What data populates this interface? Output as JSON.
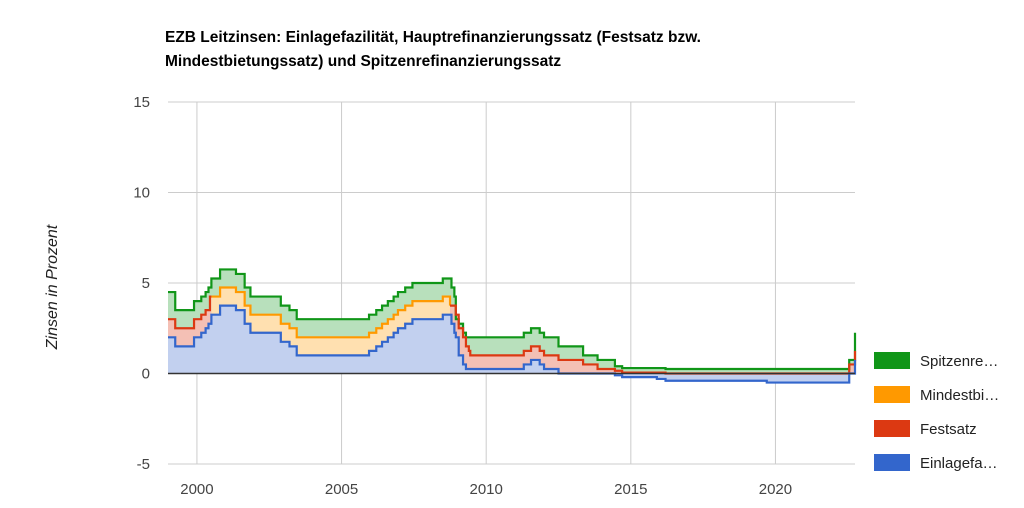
{
  "chart_data": {
    "type": "area",
    "title_lines": [
      "EZB Leitzinsen: Einlagefazilität, Hauptrefinanzierungssatz (Festsatz bzw.",
      "Mindestbietungssatz) und Spitzenrefinanzierungssatz"
    ],
    "xlabel": "",
    "ylabel": "Zinsen in Prozent",
    "xlim": [
      1999.0,
      2022.75
    ],
    "ylim": [
      -5,
      15
    ],
    "x_ticks": [
      2000,
      2005,
      2010,
      2015,
      2020
    ],
    "y_ticks": [
      -5,
      0,
      5,
      10,
      15
    ],
    "grid": true,
    "stacked": true,
    "legend_position": "right",
    "series": [
      {
        "name": "Einlagefa…",
        "color": "#3366cc",
        "fill": "#c2d0ef",
        "points": [
          [
            1999.0,
            2.0
          ],
          [
            1999.25,
            1.5
          ],
          [
            1999.9,
            2.0
          ],
          [
            2000.15,
            2.25
          ],
          [
            2000.3,
            2.5
          ],
          [
            2000.4,
            2.75
          ],
          [
            2000.5,
            3.25
          ],
          [
            2000.8,
            3.75
          ],
          [
            2001.35,
            3.5
          ],
          [
            2001.65,
            2.75
          ],
          [
            2001.85,
            2.25
          ],
          [
            2002.9,
            1.75
          ],
          [
            2003.2,
            1.5
          ],
          [
            2003.45,
            1.0
          ],
          [
            2005.95,
            1.25
          ],
          [
            2006.2,
            1.5
          ],
          [
            2006.4,
            1.75
          ],
          [
            2006.6,
            2.0
          ],
          [
            2006.8,
            2.25
          ],
          [
            2006.95,
            2.5
          ],
          [
            2007.2,
            2.75
          ],
          [
            2007.45,
            3.0
          ],
          [
            2008.5,
            3.25
          ],
          [
            2008.8,
            2.75
          ],
          [
            2008.9,
            2.25
          ],
          [
            2008.95,
            2.0
          ],
          [
            2009.05,
            1.0
          ],
          [
            2009.2,
            0.5
          ],
          [
            2009.3,
            0.25
          ],
          [
            2011.3,
            0.5
          ],
          [
            2011.55,
            0.75
          ],
          [
            2011.85,
            0.5
          ],
          [
            2012.0,
            0.25
          ],
          [
            2012.5,
            0.0
          ],
          [
            2014.45,
            -0.1
          ],
          [
            2014.7,
            -0.2
          ],
          [
            2015.9,
            -0.3
          ],
          [
            2016.2,
            -0.4
          ],
          [
            2019.7,
            -0.5
          ],
          [
            2022.55,
            0.0
          ],
          [
            2022.75,
            0.75
          ]
        ]
      },
      {
        "name": "Festsatz",
        "color": "#dc3912",
        "fill": "#f4c0b5",
        "points": [
          [
            1999.0,
            3.0
          ],
          [
            1999.25,
            2.5
          ],
          [
            1999.9,
            3.0
          ],
          [
            2000.15,
            3.25
          ],
          [
            2000.3,
            3.5
          ],
          [
            2000.45,
            4.25
          ],
          [
            2000.5,
            4.25
          ]
        ],
        "points_late": [
          [
            2008.75,
            3.75
          ],
          [
            2008.95,
            3.25
          ],
          [
            2009.05,
            2.5
          ],
          [
            2009.2,
            2.0
          ],
          [
            2009.3,
            1.5
          ],
          [
            2009.4,
            1.25
          ],
          [
            2009.45,
            1.0
          ],
          [
            2011.3,
            1.25
          ],
          [
            2011.55,
            1.5
          ],
          [
            2011.85,
            1.25
          ],
          [
            2012.0,
            1.0
          ],
          [
            2012.5,
            0.75
          ],
          [
            2013.35,
            0.5
          ],
          [
            2013.85,
            0.25
          ],
          [
            2014.45,
            0.15
          ],
          [
            2014.7,
            0.05
          ],
          [
            2016.2,
            0.0
          ],
          [
            2022.55,
            0.5
          ],
          [
            2022.75,
            1.25
          ]
        ]
      },
      {
        "name": "Mindestbi…",
        "color": "#ff9900",
        "fill": "#ffe0b0",
        "points": [
          [
            2000.5,
            4.25
          ],
          [
            2000.8,
            4.75
          ],
          [
            2001.35,
            4.5
          ],
          [
            2001.65,
            3.75
          ],
          [
            2001.85,
            3.25
          ],
          [
            2002.9,
            2.75
          ],
          [
            2003.2,
            2.5
          ],
          [
            2003.45,
            2.0
          ],
          [
            2005.95,
            2.25
          ],
          [
            2006.2,
            2.5
          ],
          [
            2006.4,
            2.75
          ],
          [
            2006.6,
            3.0
          ],
          [
            2006.8,
            3.25
          ],
          [
            2006.95,
            3.5
          ],
          [
            2007.2,
            3.75
          ],
          [
            2007.45,
            4.0
          ],
          [
            2008.5,
            4.25
          ],
          [
            2008.75,
            3.75
          ]
        ]
      },
      {
        "name": "Spitzenre…",
        "color": "#109618",
        "fill": "#b8e0bc",
        "points": [
          [
            1999.0,
            4.5
          ],
          [
            1999.25,
            3.5
          ],
          [
            1999.9,
            4.0
          ],
          [
            2000.15,
            4.25
          ],
          [
            2000.3,
            4.5
          ],
          [
            2000.4,
            4.75
          ],
          [
            2000.5,
            5.25
          ],
          [
            2000.8,
            5.75
          ],
          [
            2001.35,
            5.5
          ],
          [
            2001.65,
            4.75
          ],
          [
            2001.85,
            4.25
          ],
          [
            2002.9,
            3.75
          ],
          [
            2003.2,
            3.5
          ],
          [
            2003.45,
            3.0
          ],
          [
            2005.95,
            3.25
          ],
          [
            2006.2,
            3.5
          ],
          [
            2006.4,
            3.75
          ],
          [
            2006.6,
            4.0
          ],
          [
            2006.8,
            4.25
          ],
          [
            2006.95,
            4.5
          ],
          [
            2007.2,
            4.75
          ],
          [
            2007.45,
            5.0
          ],
          [
            2008.5,
            5.25
          ],
          [
            2008.8,
            4.75
          ],
          [
            2008.9,
            4.25
          ],
          [
            2008.95,
            3.0
          ],
          [
            2009.05,
            2.75
          ],
          [
            2009.2,
            2.25
          ],
          [
            2009.3,
            2.0
          ],
          [
            2011.3,
            2.25
          ],
          [
            2011.55,
            2.5
          ],
          [
            2011.85,
            2.25
          ],
          [
            2012.0,
            2.0
          ],
          [
            2012.5,
            1.5
          ],
          [
            2013.35,
            1.0
          ],
          [
            2013.85,
            0.75
          ],
          [
            2014.45,
            0.4
          ],
          [
            2014.7,
            0.3
          ],
          [
            2016.2,
            0.25
          ],
          [
            2022.55,
            0.75
          ],
          [
            2022.75,
            2.25
          ]
        ]
      }
    ]
  }
}
